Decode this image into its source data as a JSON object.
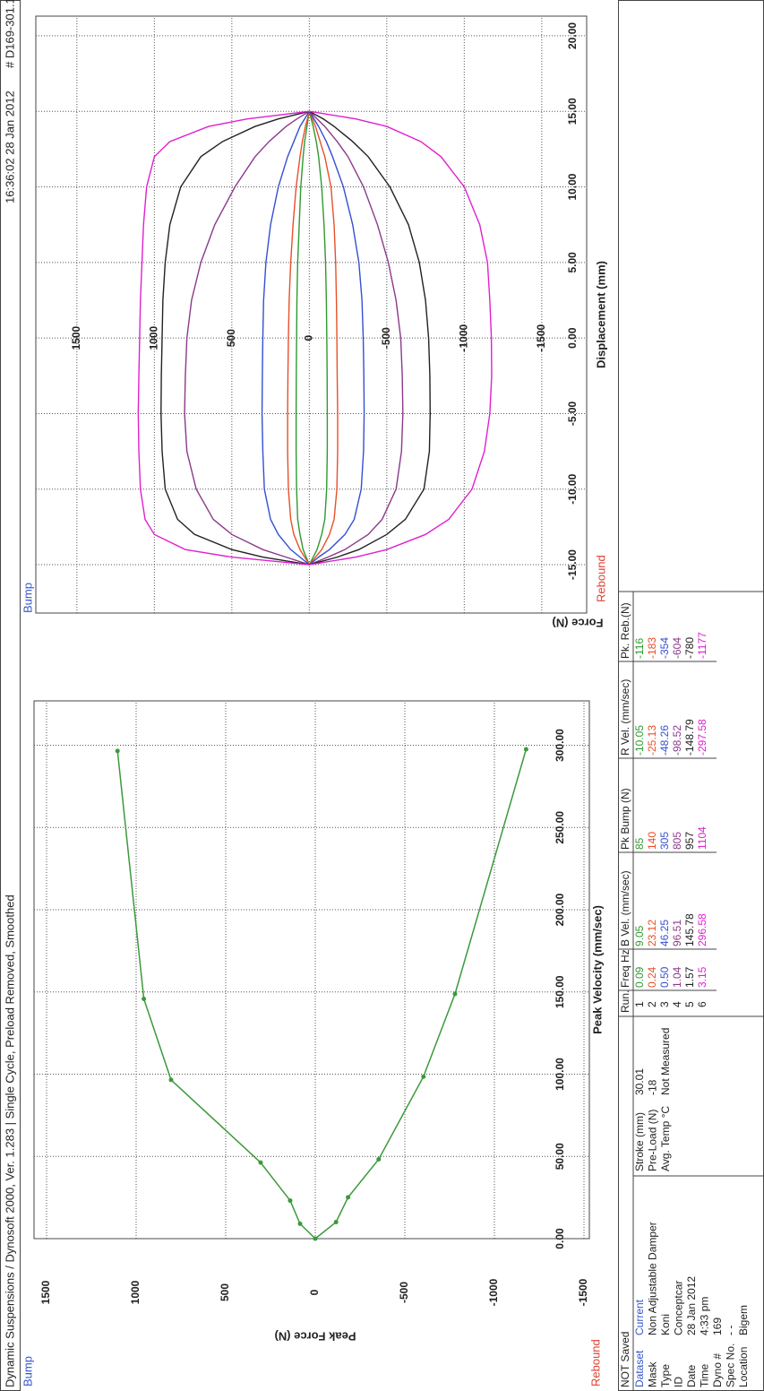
{
  "header": {
    "title": "Dynamic Suspensions / Dynosoft 2000, Ver. 1.283 |  Single Cycle, Preload Removed, Smoothed",
    "timestamp": "16:36:02  28 Jan 2012",
    "id": "# D169-301.1"
  },
  "charts": [
    {
      "type": "velocity",
      "bump_label": "Bump",
      "rebound_label": "Rebound",
      "y_label": "Peak Force (N)",
      "x_label": "Peak Velocity (mm/sec)",
      "color": "#3a9a3a",
      "xlim": [
        0,
        327
      ],
      "xticks": [
        {
          "value": 0,
          "label": "0.00"
        },
        {
          "value": 50,
          "label": "50.00"
        },
        {
          "value": 100,
          "label": "100.00"
        },
        {
          "value": 150,
          "label": "150.00"
        },
        {
          "value": 200,
          "label": "200.00"
        },
        {
          "value": 250,
          "label": "250.00"
        },
        {
          "value": 300,
          "label": "300.00"
        }
      ],
      "ylim": [
        -1530,
        1570
      ],
      "yticks": [
        1500,
        1000,
        500,
        0,
        -500,
        -1000,
        -1500
      ],
      "grid": true
    },
    {
      "type": "loops",
      "bump_label": "Bump",
      "rebound_label": "Rebound",
      "y_label": "Force (N)",
      "x_label": "Displacement (mm)",
      "x": [
        -15,
        -14.5,
        -14,
        -13,
        -12,
        -10,
        -7.5,
        -5,
        -2.5,
        0,
        2.5,
        5,
        7.5,
        10,
        12,
        13,
        14,
        14.5,
        15
      ],
      "loops": [
        {
          "bump": [
            0,
            20,
            40,
            60,
            75,
            82,
            85,
            85,
            84,
            82,
            80,
            75,
            65,
            55,
            40,
            30,
            15,
            8,
            0
          ],
          "rebound": [
            0,
            -25,
            -50,
            -80,
            -100,
            -112,
            -116,
            -116,
            -115,
            -113,
            -110,
            -105,
            -95,
            -80,
            -60,
            -45,
            -25,
            -12,
            0
          ]
        },
        {
          "bump": [
            0,
            30,
            60,
            100,
            120,
            135,
            140,
            140,
            138,
            135,
            130,
            120,
            105,
            85,
            60,
            45,
            25,
            12,
            0
          ],
          "rebound": [
            0,
            -40,
            -80,
            -130,
            -160,
            -178,
            -183,
            -183,
            -180,
            -178,
            -175,
            -170,
            -160,
            -140,
            -100,
            -70,
            -40,
            -20,
            0
          ]
        },
        {
          "bump": [
            0,
            60,
            120,
            200,
            250,
            290,
            300,
            305,
            303,
            300,
            295,
            280,
            250,
            200,
            140,
            100,
            60,
            30,
            0
          ],
          "rebound": [
            0,
            -60,
            -130,
            -230,
            -290,
            -335,
            -350,
            -354,
            -352,
            -348,
            -340,
            -320,
            -280,
            -220,
            -150,
            -110,
            -60,
            -30,
            0
          ]
        },
        {
          "bump": [
            0,
            150,
            300,
            500,
            620,
            730,
            790,
            805,
            800,
            790,
            760,
            700,
            610,
            480,
            350,
            260,
            150,
            80,
            0
          ],
          "rebound": [
            0,
            -120,
            -230,
            -380,
            -470,
            -560,
            -595,
            -604,
            -600,
            -590,
            -560,
            -510,
            -440,
            -350,
            -250,
            -180,
            -100,
            -50,
            0
          ]
        },
        {
          "bump": [
            0,
            300,
            500,
            740,
            850,
            930,
            950,
            957,
            955,
            950,
            945,
            930,
            900,
            830,
            700,
            560,
            350,
            200,
            0
          ],
          "rebound": [
            0,
            -180,
            -320,
            -500,
            -620,
            -740,
            -775,
            -780,
            -778,
            -770,
            -750,
            -710,
            -640,
            -520,
            -380,
            -280,
            -160,
            -90,
            0
          ]
        },
        {
          "bump": [
            0,
            500,
            800,
            1000,
            1060,
            1090,
            1100,
            1104,
            1100,
            1095,
            1090,
            1080,
            1070,
            1050,
            1000,
            900,
            650,
            400,
            0
          ],
          "rebound": [
            0,
            -300,
            -500,
            -750,
            -900,
            -1050,
            -1130,
            -1165,
            -1177,
            -1175,
            -1165,
            -1150,
            -1100,
            -1000,
            -850,
            -720,
            -500,
            -300,
            0
          ]
        }
      ],
      "xlim": [
        -18.2,
        21.3
      ],
      "xticks": [
        {
          "value": -15,
          "label": "-15.00"
        },
        {
          "value": -10,
          "label": "-10.00"
        },
        {
          "value": -5,
          "label": "-5.00"
        },
        {
          "value": 0,
          "label": "0.00"
        },
        {
          "value": 5,
          "label": "5.00"
        },
        {
          "value": 10,
          "label": "10.00"
        },
        {
          "value": 15,
          "label": "15.00"
        },
        {
          "value": 20,
          "label": "20.00"
        }
      ],
      "ylim": [
        -1790,
        1765
      ],
      "yticks": [
        1500,
        1000,
        500,
        0,
        -500,
        -1000,
        -1500
      ],
      "grid": true
    }
  ],
  "info": {
    "status": "NOT Saved",
    "rows": [
      [
        "Dataset",
        "Current"
      ],
      [
        "Mask",
        "Non Adjustable Damper"
      ],
      [
        "Type",
        "Koni"
      ],
      [
        "ID",
        "Conceptcar"
      ],
      [
        "Date",
        "28 Jan 2012"
      ],
      [
        "Time",
        "4:33 pm"
      ],
      [
        "Dyno #",
        "169"
      ],
      [
        "Spec No.",
        "- -"
      ],
      [
        "Location",
        "Bigem"
      ]
    ]
  },
  "settings": {
    "rows": [
      [
        "Stroke (mm)",
        30.01
      ],
      [
        "Pre-Load (N)",
        -18
      ],
      [
        "Avg. Temp °C",
        "Not Measured"
      ]
    ]
  },
  "runs": {
    "columns": [
      "Run.",
      "Freq Hz",
      "B Vel. (mm/sec)",
      "Pk Bump (N)",
      "R Vel. (mm/sec)",
      "Pk. Reb.(N)"
    ],
    "colors": [
      "#2f9a2f",
      "#e8502a",
      "#3350d0",
      "#8a3a8a",
      "#222222",
      "#e020d0"
    ],
    "rows": [
      [
        1,
        "0.09",
        9.05,
        85,
        -10.05,
        -116
      ],
      [
        2,
        "0.24",
        23.12,
        140,
        -25.13,
        -183
      ],
      [
        3,
        "0.50",
        46.25,
        305,
        -48.26,
        -354
      ],
      [
        4,
        "1.04",
        96.51,
        805,
        -98.52,
        -604
      ],
      [
        5,
        "1.57",
        145.78,
        957,
        -148.79,
        -780
      ],
      [
        6,
        "3.15",
        296.58,
        1104,
        -297.58,
        -1177
      ]
    ]
  }
}
